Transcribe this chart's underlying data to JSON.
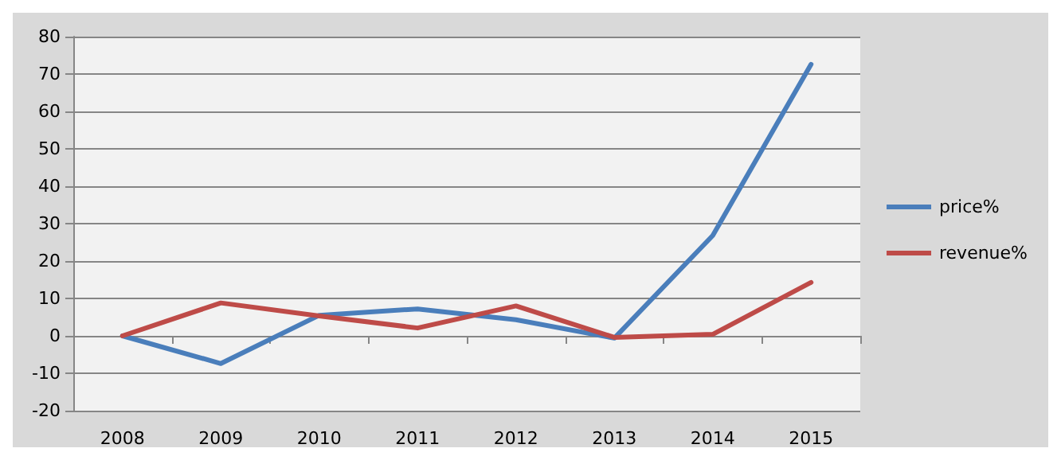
{
  "chart_data": {
    "type": "line",
    "categories": [
      "2008",
      "2009",
      "2010",
      "2011",
      "2012",
      "2013",
      "2014",
      "2015"
    ],
    "series": [
      {
        "name": "price%",
        "color": "#4a7ebb",
        "values": [
          0,
          -7.4,
          5.5,
          7.2,
          4.3,
          -0.6,
          26.8,
          72.6
        ]
      },
      {
        "name": "revenue%",
        "color": "#be4b48",
        "values": [
          0,
          8.8,
          5.3,
          2.1,
          8.0,
          -0.4,
          0.4,
          14.3
        ]
      }
    ],
    "ylim": [
      -20,
      80
    ],
    "yticks": [
      -20,
      -10,
      0,
      10,
      20,
      30,
      40,
      50,
      60,
      70,
      80
    ],
    "grid": "y",
    "legend": "right",
    "marker": "none",
    "line_style": "solid"
  }
}
